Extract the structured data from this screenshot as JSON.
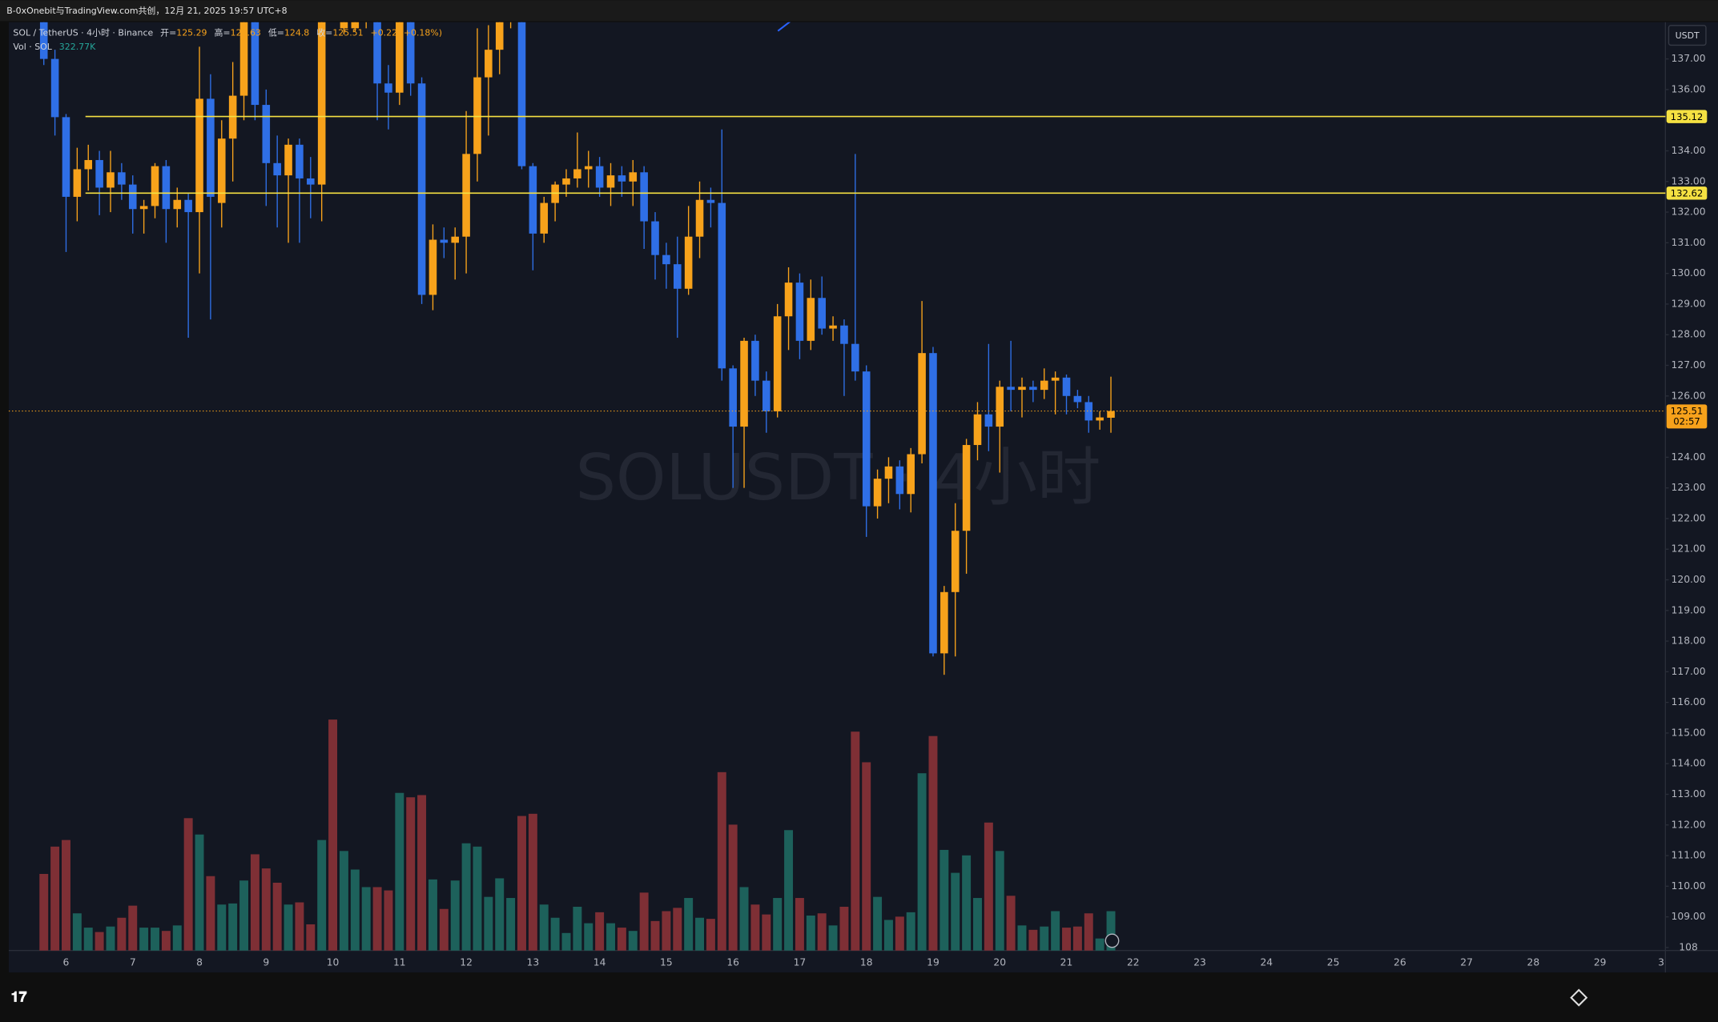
{
  "header": {
    "text": "B-0xOnebit与TradingView.com共创，12月 21, 2025 19:57 UTC+8"
  },
  "legend": {
    "symbol": "SOL / TetherUS · 4小时 · Binance",
    "open_label": "开=",
    "high_label": "高=",
    "low_label": "低=",
    "close_label": "收=",
    "change": "+0.22 (+0.18%)",
    "volume_name": "Vol · SOL",
    "volume_value": "322.77K"
  },
  "chart_data": {
    "type": "candlestick",
    "watermark": "SOLUSDT · 4小时",
    "axis_unit": "USDT",
    "categories": [
      null,
      null,
      6,
      null,
      null,
      null,
      null,
      null,
      7,
      null,
      null,
      null,
      null,
      null,
      8,
      null,
      null,
      null,
      null,
      null,
      9,
      null,
      null,
      null,
      null,
      null,
      10,
      null,
      null,
      null,
      null,
      null,
      11,
      null,
      null,
      null,
      null,
      null,
      12,
      null,
      null,
      null,
      null,
      null,
      13,
      null,
      null,
      null,
      null,
      null,
      14,
      null,
      null,
      null,
      null,
      null,
      15,
      null,
      null,
      null,
      null,
      null,
      16,
      null,
      null,
      null,
      null,
      null,
      17,
      null,
      null,
      null,
      null,
      null,
      18,
      null,
      null,
      null,
      null,
      null,
      19,
      null,
      null,
      null,
      null,
      null,
      20,
      null,
      null,
      null,
      null,
      null,
      21,
      null,
      null,
      null,
      null
    ],
    "future_x_labels": [
      22,
      23,
      24,
      25,
      26,
      27,
      28,
      29,
      3
    ],
    "open": [
      139.0,
      137.0,
      135.1,
      132.5,
      133.4,
      133.7,
      132.8,
      133.3,
      132.9,
      132.1,
      132.2,
      133.5,
      132.1,
      132.4,
      132.0,
      135.7,
      132.3,
      134.4,
      135.8,
      138.6,
      135.5,
      133.6,
      133.2,
      134.2,
      133.1,
      132.9,
      139.8,
      138.0,
      138.0,
      138.3,
      138.6,
      136.2,
      135.9,
      138.6,
      136.2,
      129.3,
      131.1,
      131.0,
      131.2,
      133.9,
      136.4,
      137.3,
      138.7,
      139.0,
      133.5,
      131.3,
      132.3,
      132.9,
      133.1,
      133.4,
      133.5,
      132.8,
      133.2,
      133.0,
      133.3,
      131.7,
      130.6,
      130.3,
      129.5,
      131.2,
      132.4,
      132.3,
      126.9,
      125.0,
      127.8,
      126.5,
      125.5,
      128.6,
      129.7,
      127.8,
      129.2,
      128.2,
      128.3,
      127.7,
      126.8,
      122.4,
      123.3,
      123.7,
      122.8,
      124.1,
      127.4,
      117.6,
      119.6,
      121.6,
      124.4,
      125.4,
      125.0,
      126.3,
      126.2,
      126.3,
      126.2,
      126.5,
      126.6,
      126.0,
      125.8,
      125.2,
      125.29
    ],
    "high": [
      139.5,
      137.3,
      135.2,
      134.1,
      134.2,
      134.0,
      134.0,
      133.6,
      133.2,
      132.4,
      133.6,
      133.7,
      132.8,
      132.6,
      137.4,
      136.5,
      135.0,
      136.9,
      139.0,
      139.0,
      136.0,
      134.5,
      134.4,
      134.4,
      133.8,
      139.0,
      140.2,
      138.6,
      138.6,
      139.0,
      139.0,
      136.8,
      139.0,
      139.0,
      136.4,
      131.6,
      131.5,
      131.5,
      135.3,
      138.0,
      138.1,
      139.0,
      139.5,
      139.2,
      133.6,
      132.5,
      133.0,
      133.4,
      134.6,
      134.0,
      133.8,
      133.6,
      133.5,
      133.7,
      133.5,
      132.0,
      131.0,
      131.2,
      132.2,
      133.0,
      132.8,
      134.7,
      127.0,
      127.9,
      128.0,
      126.8,
      129.0,
      130.2,
      130.0,
      129.8,
      129.9,
      128.6,
      128.5,
      133.9,
      127.0,
      123.6,
      124.0,
      123.9,
      124.3,
      129.1,
      127.6,
      119.8,
      122.5,
      124.6,
      125.8,
      127.7,
      126.5,
      127.8,
      126.6,
      126.5,
      126.9,
      126.8,
      126.7,
      126.2,
      126.0,
      125.5,
      126.63
    ],
    "low": [
      136.8,
      134.5,
      130.7,
      131.7,
      132.7,
      131.9,
      132.0,
      132.4,
      131.3,
      131.3,
      131.8,
      131.0,
      131.5,
      127.9,
      130.0,
      128.5,
      131.5,
      133.0,
      135.0,
      135.0,
      132.2,
      131.5,
      131.0,
      131.0,
      131.8,
      131.7,
      138.5,
      137.8,
      137.9,
      138.0,
      135.0,
      134.7,
      135.5,
      135.8,
      129.0,
      128.8,
      130.5,
      129.8,
      130.0,
      133.0,
      134.5,
      136.5,
      138.0,
      133.4,
      130.1,
      131.0,
      131.7,
      132.5,
      132.8,
      132.8,
      132.5,
      132.2,
      132.5,
      132.2,
      130.8,
      129.8,
      129.5,
      127.9,
      129.3,
      130.5,
      131.5,
      126.5,
      123.0,
      123.0,
      126.0,
      124.8,
      125.3,
      127.5,
      127.2,
      127.5,
      128.0,
      127.8,
      126.0,
      126.5,
      121.4,
      122.0,
      122.5,
      122.3,
      122.2,
      123.8,
      117.5,
      116.9,
      117.5,
      120.2,
      123.9,
      124.2,
      123.5,
      125.5,
      125.3,
      125.8,
      125.9,
      125.4,
      125.4,
      125.6,
      124.8,
      124.9,
      124.8
    ],
    "close": [
      137.0,
      135.1,
      132.5,
      133.4,
      133.7,
      132.8,
      133.3,
      132.9,
      132.1,
      132.2,
      133.5,
      132.1,
      132.4,
      132.0,
      135.7,
      132.5,
      134.4,
      135.8,
      138.6,
      135.5,
      133.6,
      133.2,
      134.2,
      133.1,
      132.9,
      138.8,
      138.8,
      138.4,
      138.3,
      138.6,
      136.2,
      135.9,
      138.6,
      136.2,
      129.3,
      131.1,
      131.0,
      131.2,
      133.9,
      136.4,
      137.3,
      138.7,
      139.0,
      133.5,
      131.3,
      132.3,
      132.9,
      133.1,
      133.4,
      133.5,
      132.8,
      133.2,
      133.0,
      133.3,
      131.7,
      130.6,
      130.3,
      129.5,
      131.2,
      132.4,
      132.3,
      126.9,
      125.0,
      127.8,
      126.5,
      125.5,
      128.6,
      129.7,
      127.8,
      129.2,
      128.2,
      128.3,
      127.7,
      126.8,
      122.4,
      123.3,
      123.7,
      122.8,
      124.1,
      127.4,
      117.6,
      119.6,
      121.6,
      124.4,
      125.4,
      125.0,
      126.3,
      126.2,
      126.3,
      126.2,
      126.5,
      126.6,
      126.0,
      125.8,
      125.2,
      125.3,
      125.51
    ],
    "volume": [
      628,
      852,
      906,
      305,
      188,
      152,
      197,
      269,
      368,
      188,
      188,
      161,
      206,
      1085,
      951,
      610,
      377,
      386,
      574,
      789,
      673,
      556,
      377,
      395,
      215,
      906,
      1893,
      816,
      664,
      520,
      520,
      493,
      1292,
      1256,
      1274,
      583,
      341,
      574,
      879,
      852,
      440,
      592,
      431,
      1103,
      1121,
      377,
      269,
      144,
      359,
      224,
      314,
      224,
      188,
      161,
      475,
      242,
      323,
      350,
      431,
      269,
      260,
      1462,
      1032,
      520,
      377,
      296,
      431,
      987,
      431,
      287,
      305,
      206,
      359,
      1794,
      1543,
      440,
      251,
      278,
      314,
      1453,
      1758,
      825,
      637,
      780,
      431,
      1049,
      816,
      449,
      206,
      170,
      197,
      323,
      188,
      197,
      305,
      99,
      322.77
    ],
    "ylim": [
      107.9,
      138.2
    ],
    "yticks": [
      108,
      {
        "value": 109,
        "label": "109.00"
      },
      {
        "value": 110,
        "label": "110.00"
      },
      {
        "value": 111,
        "label": "111.00"
      },
      {
        "value": 112,
        "label": "112.00"
      },
      {
        "value": 113,
        "label": "113.00"
      },
      {
        "value": 114,
        "label": "114.00"
      },
      {
        "value": 115,
        "label": "115.00"
      },
      {
        "value": 116,
        "label": "116.00"
      },
      {
        "value": 117,
        "label": "117.00"
      },
      {
        "value": 118,
        "label": "118.00"
      },
      {
        "value": 119,
        "label": "119.00"
      },
      {
        "value": 120,
        "label": "120.00"
      },
      {
        "value": 121,
        "label": "121.00"
      },
      {
        "value": 122,
        "label": "122.00"
      },
      {
        "value": 123,
        "label": "123.00"
      },
      {
        "value": 124,
        "label": "124.00"
      },
      {
        "value": 126,
        "label": "126.00"
      },
      {
        "value": 127,
        "label": "127.00"
      },
      {
        "value": 128,
        "label": "128.00"
      },
      {
        "value": 129,
        "label": "129.00"
      },
      {
        "value": 130,
        "label": "130.00"
      },
      {
        "value": 131,
        "label": "131.00"
      },
      {
        "value": 132,
        "label": "132.00"
      },
      {
        "value": 133,
        "label": "133.00"
      },
      {
        "value": 134,
        "label": "134.00"
      },
      {
        "value": 136,
        "label": "136.00"
      },
      {
        "value": 137,
        "label": "137.00"
      }
    ],
    "up_color": "#f7a21b",
    "down_color": "#2f6fe6",
    "volume_up_color": "#1d615b",
    "volume_down_color": "#7e2f35",
    "hlines": [
      {
        "value": 135.12,
        "color": "#f5e142"
      },
      {
        "value": 132.62,
        "color": "#f5e142"
      }
    ],
    "countdown": "02:57",
    "last_price_color": "#f7a21b"
  }
}
